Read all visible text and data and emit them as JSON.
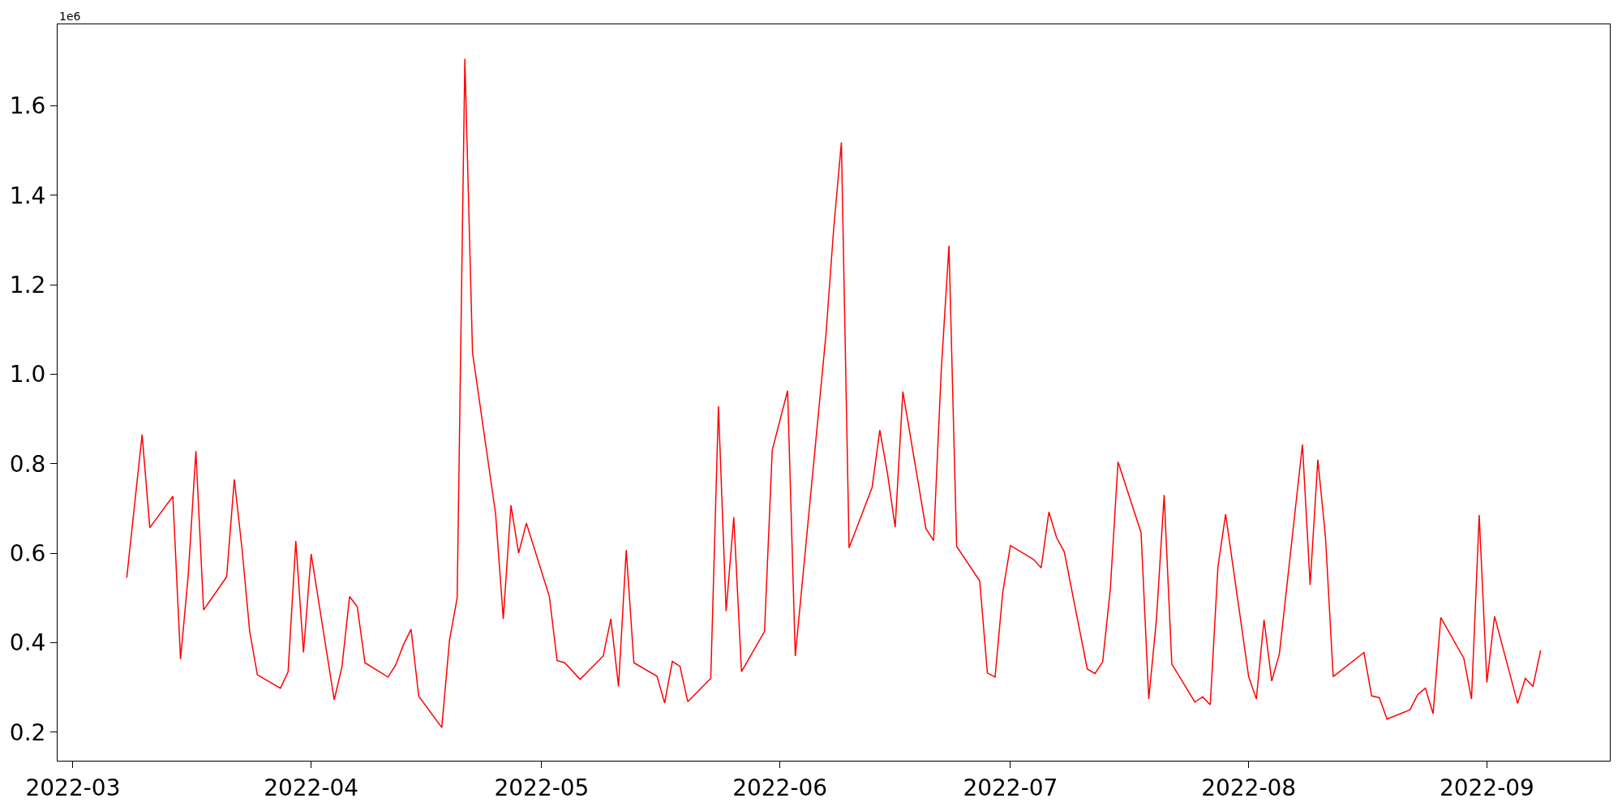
{
  "chart_data": {
    "type": "line",
    "annotations": [
      "1e6"
    ],
    "x": [
      "2022-03-08",
      "2022-03-10",
      "2022-03-11",
      "2022-03-14",
      "2022-03-15",
      "2022-03-16",
      "2022-03-17",
      "2022-03-18",
      "2022-03-21",
      "2022-03-22",
      "2022-03-23",
      "2022-03-24",
      "2022-03-25",
      "2022-03-28",
      "2022-03-29",
      "2022-03-30",
      "2022-03-31",
      "2022-04-01",
      "2022-04-04",
      "2022-04-05",
      "2022-04-06",
      "2022-04-07",
      "2022-04-08",
      "2022-04-11",
      "2022-04-12",
      "2022-04-13",
      "2022-04-14",
      "2022-04-15",
      "2022-04-18",
      "2022-04-19",
      "2022-04-20",
      "2022-04-21",
      "2022-04-22",
      "2022-04-25",
      "2022-04-26",
      "2022-04-27",
      "2022-04-28",
      "2022-04-29",
      "2022-05-02",
      "2022-05-03",
      "2022-05-04",
      "2022-05-06",
      "2022-05-09",
      "2022-05-10",
      "2022-05-11",
      "2022-05-12",
      "2022-05-13",
      "2022-05-16",
      "2022-05-17",
      "2022-05-18",
      "2022-05-19",
      "2022-05-20",
      "2022-05-23",
      "2022-05-24",
      "2022-05-25",
      "2022-05-26",
      "2022-05-27",
      "2022-05-30",
      "2022-05-31",
      "2022-06-02",
      "2022-06-03",
      "2022-06-07",
      "2022-06-08",
      "2022-06-09",
      "2022-06-10",
      "2022-06-13",
      "2022-06-14",
      "2022-06-15",
      "2022-06-16",
      "2022-06-17",
      "2022-06-20",
      "2022-06-21",
      "2022-06-22",
      "2022-06-23",
      "2022-06-24",
      "2022-06-27",
      "2022-06-28",
      "2022-06-29",
      "2022-06-30",
      "2022-07-01",
      "2022-07-04",
      "2022-07-05",
      "2022-07-06",
      "2022-07-07",
      "2022-07-08",
      "2022-07-11",
      "2022-07-12",
      "2022-07-13",
      "2022-07-14",
      "2022-07-15",
      "2022-07-18",
      "2022-07-19",
      "2022-07-20",
      "2022-07-21",
      "2022-07-22",
      "2022-07-25",
      "2022-07-26",
      "2022-07-27",
      "2022-07-28",
      "2022-07-29",
      "2022-08-01",
      "2022-08-02",
      "2022-08-03",
      "2022-08-04",
      "2022-08-05",
      "2022-08-08",
      "2022-08-09",
      "2022-08-10",
      "2022-08-11",
      "2022-08-12",
      "2022-08-16",
      "2022-08-17",
      "2022-08-18",
      "2022-08-19",
      "2022-08-22",
      "2022-08-23",
      "2022-08-24",
      "2022-08-25",
      "2022-08-26",
      "2022-08-29",
      "2022-08-30",
      "2022-08-31",
      "2022-09-01",
      "2022-09-02",
      "2022-09-05",
      "2022-09-06",
      "2022-09-07",
      "2022-09-08"
    ],
    "series": [
      {
        "color": "#ff0000",
        "values": [
          0.545,
          0.865,
          0.657,
          0.727,
          0.363,
          0.55,
          0.828,
          0.473,
          0.547,
          0.765,
          0.61,
          0.425,
          0.328,
          0.298,
          0.335,
          0.627,
          0.378,
          0.598,
          0.272,
          0.345,
          0.503,
          0.48,
          0.355,
          0.323,
          0.35,
          0.395,
          0.43,
          0.28,
          0.21,
          0.405,
          0.5,
          1.705,
          1.048,
          0.688,
          0.453,
          0.707,
          0.6,
          0.667,
          0.503,
          0.36,
          0.355,
          0.318,
          0.37,
          0.453,
          0.302,
          0.607,
          0.355,
          0.325,
          0.265,
          0.358,
          0.347,
          0.268,
          0.32,
          0.928,
          0.47,
          0.68,
          0.335,
          0.425,
          0.83,
          0.963,
          0.37,
          1.09,
          1.326,
          1.518,
          0.612,
          0.747,
          0.875,
          0.778,
          0.658,
          0.961,
          0.655,
          0.628,
          1.01,
          1.287,
          0.615,
          0.538,
          0.332,
          0.323,
          0.513,
          0.617,
          0.586,
          0.567,
          0.692,
          0.635,
          0.603,
          0.341,
          0.331,
          0.357,
          0.52,
          0.804,
          0.646,
          0.274,
          0.452,
          0.73,
          0.352,
          0.267,
          0.279,
          0.261,
          0.569,
          0.687,
          0.324,
          0.274,
          0.451,
          0.314,
          0.375,
          0.843,
          0.529,
          0.809,
          0.635,
          0.324,
          0.378,
          0.281,
          0.277,
          0.229,
          0.25,
          0.284,
          0.298,
          0.241,
          0.456,
          0.365,
          0.274,
          0.685,
          0.311,
          0.459,
          0.264,
          0.32,
          0.302,
          0.383
        ]
      }
    ],
    "xlim": [
      "2022-02-27",
      "2022-09-17"
    ],
    "xticks": [
      {
        "value": "2022-03-01",
        "label": "2022-03"
      },
      {
        "value": "2022-04-01",
        "label": "2022-04"
      },
      {
        "value": "2022-05-01",
        "label": "2022-05"
      },
      {
        "value": "2022-06-01",
        "label": "2022-06"
      },
      {
        "value": "2022-07-01",
        "label": "2022-07"
      },
      {
        "value": "2022-08-01",
        "label": "2022-08"
      },
      {
        "value": "2022-09-01",
        "label": "2022-09"
      }
    ],
    "ylim": [
      0.136,
      1.782
    ],
    "yticks": [
      {
        "value": 0.2,
        "label": "0.2"
      },
      {
        "value": 0.4,
        "label": "0.4"
      },
      {
        "value": 0.6,
        "label": "0.6"
      },
      {
        "value": 0.8,
        "label": "0.8"
      },
      {
        "value": 1.0,
        "label": "1.0"
      },
      {
        "value": 1.2,
        "label": "1.2"
      },
      {
        "value": 1.4,
        "label": "1.4"
      },
      {
        "value": 1.6,
        "label": "1.6"
      }
    ],
    "marker": "none",
    "line_style": "solid"
  }
}
